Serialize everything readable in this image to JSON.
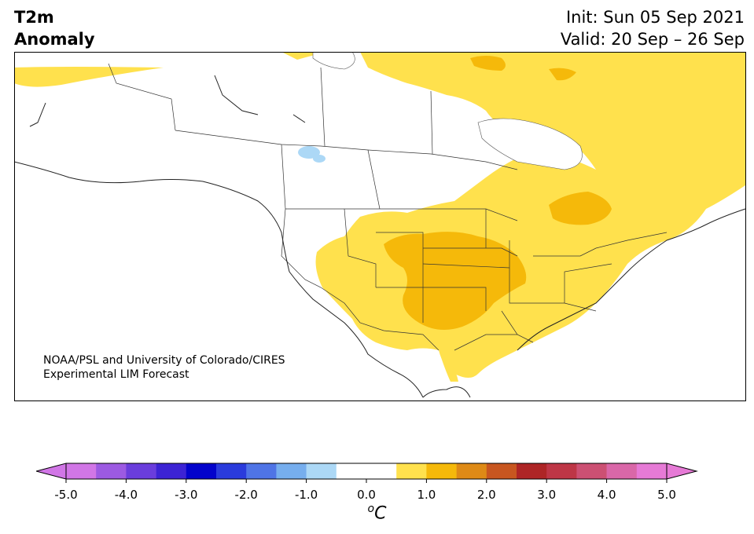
{
  "header": {
    "variable_line1": "T2m",
    "variable_line2": "Anomaly",
    "init": "Init: Sun 05 Sep 2021",
    "valid": "Valid: 20 Sep – 26 Sep"
  },
  "credit": {
    "line1": "NOAA/PSL and University of Colorado/CIRES",
    "line2": "Experimental LIM Forecast"
  },
  "colorbar": {
    "unit_base": "C",
    "unit_sup": "o",
    "min": -5.0,
    "max": 5.0,
    "step": 0.5,
    "tick_labels": [
      "-5.0",
      "-4.0",
      "-3.0",
      "-2.0",
      "-1.0",
      "0.0",
      "1.0",
      "2.0",
      "3.0",
      "4.0",
      "5.0"
    ],
    "colors": [
      "#d176e6",
      "#9c5ae2",
      "#6a3ddc",
      "#3c23d4",
      "#0303cc",
      "#2a3bdc",
      "#4f74e6",
      "#76aeee",
      "#acd8f6",
      "#ffffff",
      "#ffffff",
      "#ffe14d",
      "#f5b90a",
      "#de8a16",
      "#c85620",
      "#ae2526",
      "#be3646",
      "#cc5073",
      "#d967a8",
      "#e67ad6"
    ],
    "extend_low": "#d176e6",
    "extend_high": "#e67ad6"
  },
  "map": {
    "region": "North America",
    "anomaly_colors": {
      "warm1": "#ffe14d",
      "warm2": "#f5b90a",
      "cool1": "#acd8f6"
    }
  }
}
